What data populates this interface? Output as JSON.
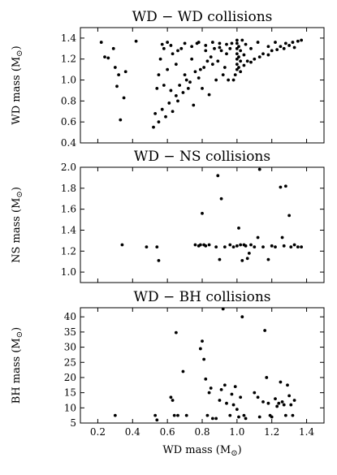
{
  "chart_data": [
    {
      "type": "scatter",
      "title": "WD − WD collisions",
      "ylabel": "WD mass (M",
      "ylabel_sub": "⊙",
      "xlim": [
        0.1,
        1.5
      ],
      "ylim": [
        0.4,
        1.5
      ],
      "xticks": [
        0.2,
        0.4,
        0.6,
        0.8,
        1.0,
        1.2,
        1.4
      ],
      "yticks": [
        0.4,
        0.6,
        0.8,
        1.0,
        1.2,
        1.4
      ],
      "ytick_labels": [
        "0.4",
        "0.6",
        "0.8",
        "1.0",
        "1.2",
        "1.4"
      ],
      "show_xtick_labels": false,
      "marker_color": "#000000",
      "series": [
        {
          "points": [
            [
              0.22,
              1.36
            ],
            [
              0.24,
              1.22
            ],
            [
              0.26,
              1.21
            ],
            [
              0.29,
              1.3
            ],
            [
              0.3,
              1.12
            ],
            [
              0.31,
              0.94
            ],
            [
              0.32,
              1.05
            ],
            [
              0.33,
              0.62
            ],
            [
              0.35,
              0.83
            ],
            [
              0.36,
              1.08
            ],
            [
              0.42,
              1.37
            ],
            [
              0.52,
              0.55
            ],
            [
              0.53,
              0.68
            ],
            [
              0.54,
              0.92
            ],
            [
              0.55,
              1.05
            ],
            [
              0.56,
              1.2
            ],
            [
              0.57,
              1.34
            ],
            [
              0.58,
              0.95
            ],
            [
              0.6,
              1.1
            ],
            [
              0.6,
              1.36
            ],
            [
              0.62,
              0.9
            ],
            [
              0.63,
              1.25
            ],
            [
              0.65,
              1.15
            ],
            [
              0.66,
              0.8
            ],
            [
              0.68,
              1.3
            ],
            [
              0.7,
              1.05
            ],
            [
              0.72,
              0.92
            ],
            [
              0.74,
              1.2
            ],
            [
              0.75,
              0.76
            ],
            [
              0.77,
              1.35
            ],
            [
              0.79,
              1.1
            ],
            [
              0.8,
              0.92
            ],
            [
              0.82,
              1.28
            ],
            [
              0.84,
              0.86
            ],
            [
              0.86,
              1.15
            ],
            [
              0.88,
              1.0
            ],
            [
              0.9,
              1.35
            ],
            [
              0.92,
              1.05
            ],
            [
              0.94,
              1.25
            ],
            [
              0.95,
              1.0
            ],
            [
              0.97,
              1.35
            ],
            [
              0.98,
              1.0
            ],
            [
              0.99,
              1.05
            ],
            [
              1.0,
              1.1
            ],
            [
              1.0,
              1.15
            ],
            [
              1.0,
              1.2
            ],
            [
              1.0,
              1.25
            ],
            [
              1.0,
              1.3
            ],
            [
              1.0,
              1.35
            ],
            [
              1.0,
              1.38
            ],
            [
              1.01,
              1.12
            ],
            [
              1.01,
              1.22
            ],
            [
              1.01,
              1.32
            ],
            [
              1.02,
              1.08
            ],
            [
              1.02,
              1.18
            ],
            [
              1.02,
              1.28
            ],
            [
              1.03,
              1.38
            ],
            [
              1.04,
              1.14
            ],
            [
              1.04,
              1.24
            ],
            [
              1.05,
              1.34
            ],
            [
              1.06,
              1.18
            ],
            [
              1.08,
              1.3
            ],
            [
              1.1,
              1.2
            ],
            [
              1.12,
              1.36
            ],
            [
              1.15,
              1.25
            ],
            [
              1.18,
              1.32
            ],
            [
              1.2,
              1.28
            ],
            [
              1.22,
              1.36
            ],
            [
              1.25,
              1.32
            ],
            [
              1.28,
              1.35
            ],
            [
              1.3,
              1.33
            ],
            [
              1.32,
              1.36
            ],
            [
              1.35,
              1.37
            ],
            [
              1.37,
              1.38
            ],
            [
              1.33,
              1.31
            ],
            [
              1.27,
              1.3
            ],
            [
              1.23,
              1.29
            ],
            [
              1.18,
              1.24
            ],
            [
              1.13,
              1.22
            ],
            [
              1.08,
              1.17
            ],
            [
              0.55,
              0.6
            ],
            [
              0.57,
              0.72
            ],
            [
              0.59,
              0.65
            ],
            [
              0.61,
              0.78
            ],
            [
              0.63,
              0.7
            ],
            [
              0.65,
              0.85
            ],
            [
              0.67,
              0.95
            ],
            [
              0.69,
              0.88
            ],
            [
              0.71,
              1.0
            ],
            [
              0.73,
              0.98
            ],
            [
              0.76,
              1.08
            ],
            [
              0.78,
              1.02
            ],
            [
              0.81,
              1.12
            ],
            [
              0.83,
              1.18
            ],
            [
              0.85,
              1.22
            ],
            [
              0.87,
              1.3
            ],
            [
              0.89,
              1.18
            ],
            [
              0.91,
              1.28
            ],
            [
              0.93,
              1.12
            ],
            [
              0.96,
              1.3
            ],
            [
              0.58,
              1.3
            ],
            [
              0.62,
              1.33
            ],
            [
              0.66,
              1.28
            ],
            [
              0.7,
              1.35
            ],
            [
              0.74,
              1.32
            ],
            [
              0.78,
              1.36
            ],
            [
              0.82,
              1.33
            ],
            [
              0.86,
              1.36
            ],
            [
              0.9,
              1.31
            ],
            [
              0.94,
              1.34
            ]
          ]
        }
      ]
    },
    {
      "type": "scatter",
      "title": "WD − NS collisions",
      "ylabel": "NS mass (M",
      "ylabel_sub": "⊙",
      "xlim": [
        0.1,
        1.5
      ],
      "ylim": [
        0.9,
        2.0
      ],
      "xticks": [
        0.2,
        0.4,
        0.6,
        0.8,
        1.0,
        1.2,
        1.4
      ],
      "yticks": [
        1.0,
        1.2,
        1.4,
        1.6,
        1.8,
        2.0
      ],
      "ytick_labels": [
        "1.0",
        "1.2",
        "1.4",
        "1.6",
        "1.8",
        "2.0"
      ],
      "show_xtick_labels": false,
      "marker_color": "#000000",
      "series": [
        {
          "points": [
            [
              0.34,
              1.26
            ],
            [
              0.48,
              1.24
            ],
            [
              0.54,
              1.24
            ],
            [
              0.55,
              1.11
            ],
            [
              0.76,
              1.26
            ],
            [
              0.78,
              1.25
            ],
            [
              0.79,
              1.26
            ],
            [
              0.8,
              1.56
            ],
            [
              0.81,
              1.26
            ],
            [
              0.82,
              1.25
            ],
            [
              0.84,
              1.26
            ],
            [
              0.88,
              1.24
            ],
            [
              0.89,
              1.92
            ],
            [
              0.9,
              1.12
            ],
            [
              0.91,
              1.7
            ],
            [
              0.93,
              1.24
            ],
            [
              0.96,
              1.26
            ],
            [
              0.98,
              1.24
            ],
            [
              1.0,
              1.25
            ],
            [
              1.01,
              1.42
            ],
            [
              1.02,
              1.26
            ],
            [
              1.03,
              1.11
            ],
            [
              1.04,
              1.26
            ],
            [
              1.05,
              1.25
            ],
            [
              1.06,
              1.13
            ],
            [
              1.07,
              1.18
            ],
            [
              1.08,
              1.26
            ],
            [
              1.1,
              1.24
            ],
            [
              1.12,
              1.33
            ],
            [
              1.13,
              1.98
            ],
            [
              1.15,
              1.24
            ],
            [
              1.18,
              1.12
            ],
            [
              1.2,
              1.25
            ],
            [
              1.22,
              1.24
            ],
            [
              1.25,
              1.81
            ],
            [
              1.26,
              1.33
            ],
            [
              1.28,
              1.82
            ],
            [
              1.3,
              1.54
            ],
            [
              1.31,
              1.24
            ],
            [
              1.33,
              1.26
            ],
            [
              1.35,
              1.24
            ],
            [
              1.37,
              1.24
            ],
            [
              1.27,
              1.25
            ]
          ]
        }
      ]
    },
    {
      "type": "scatter",
      "title": "WD − BH collisions",
      "ylabel": "BH mass (M",
      "ylabel_sub": "⊙",
      "xlabel": "WD mass (M",
      "xlabel_sub": "⊙",
      "xlim": [
        0.1,
        1.5
      ],
      "ylim": [
        5,
        43
      ],
      "xticks": [
        0.2,
        0.4,
        0.6,
        0.8,
        1.0,
        1.2,
        1.4
      ],
      "xtick_labels": [
        "0.2",
        "0.4",
        "0.6",
        "0.8",
        "1.0",
        "1.2",
        "1.4"
      ],
      "yticks": [
        5,
        10,
        15,
        20,
        25,
        30,
        35,
        40
      ],
      "ytick_labels": [
        "5",
        "10",
        "15",
        "20",
        "25",
        "30",
        "35",
        "40"
      ],
      "show_xtick_labels": true,
      "marker_color": "#000000",
      "series": [
        {
          "points": [
            [
              0.3,
              7.5
            ],
            [
              0.53,
              7.5
            ],
            [
              0.54,
              6.0
            ],
            [
              0.62,
              13.5
            ],
            [
              0.63,
              12.5
            ],
            [
              0.64,
              7.5
            ],
            [
              0.65,
              34.8
            ],
            [
              0.66,
              7.5
            ],
            [
              0.69,
              22.0
            ],
            [
              0.71,
              7.5
            ],
            [
              0.79,
              29.5
            ],
            [
              0.8,
              32.0
            ],
            [
              0.81,
              26.0
            ],
            [
              0.82,
              19.5
            ],
            [
              0.83,
              7.5
            ],
            [
              0.84,
              15.0
            ],
            [
              0.85,
              16.5
            ],
            [
              0.86,
              6.5
            ],
            [
              0.88,
              6.5
            ],
            [
              0.9,
              12.5
            ],
            [
              0.92,
              43.0
            ],
            [
              0.93,
              17.5
            ],
            [
              0.94,
              11.5
            ],
            [
              0.96,
              7.5
            ],
            [
              0.97,
              14.5
            ],
            [
              0.98,
              11.0
            ],
            [
              0.99,
              17.0
            ],
            [
              1.0,
              9.5
            ],
            [
              1.01,
              7.0
            ],
            [
              1.02,
              13.5
            ],
            [
              1.03,
              40.0
            ],
            [
              1.04,
              7.5
            ],
            [
              1.05,
              6.5
            ],
            [
              1.1,
              15.0
            ],
            [
              1.12,
              13.5
            ],
            [
              1.13,
              7.0
            ],
            [
              1.15,
              12.0
            ],
            [
              1.16,
              35.5
            ],
            [
              1.17,
              20.0
            ],
            [
              1.18,
              11.5
            ],
            [
              1.19,
              7.5
            ],
            [
              1.2,
              7.0
            ],
            [
              1.22,
              13.0
            ],
            [
              1.23,
              10.5
            ],
            [
              1.25,
              18.5
            ],
            [
              1.26,
              12.0
            ],
            [
              1.27,
              11.0
            ],
            [
              1.28,
              7.5
            ],
            [
              1.29,
              17.5
            ],
            [
              1.3,
              14.0
            ],
            [
              1.31,
              11.0
            ],
            [
              1.32,
              7.5
            ],
            [
              1.33,
              12.5
            ],
            [
              1.24,
              11.5
            ],
            [
              0.91,
              16.0
            ]
          ]
        }
      ]
    }
  ]
}
